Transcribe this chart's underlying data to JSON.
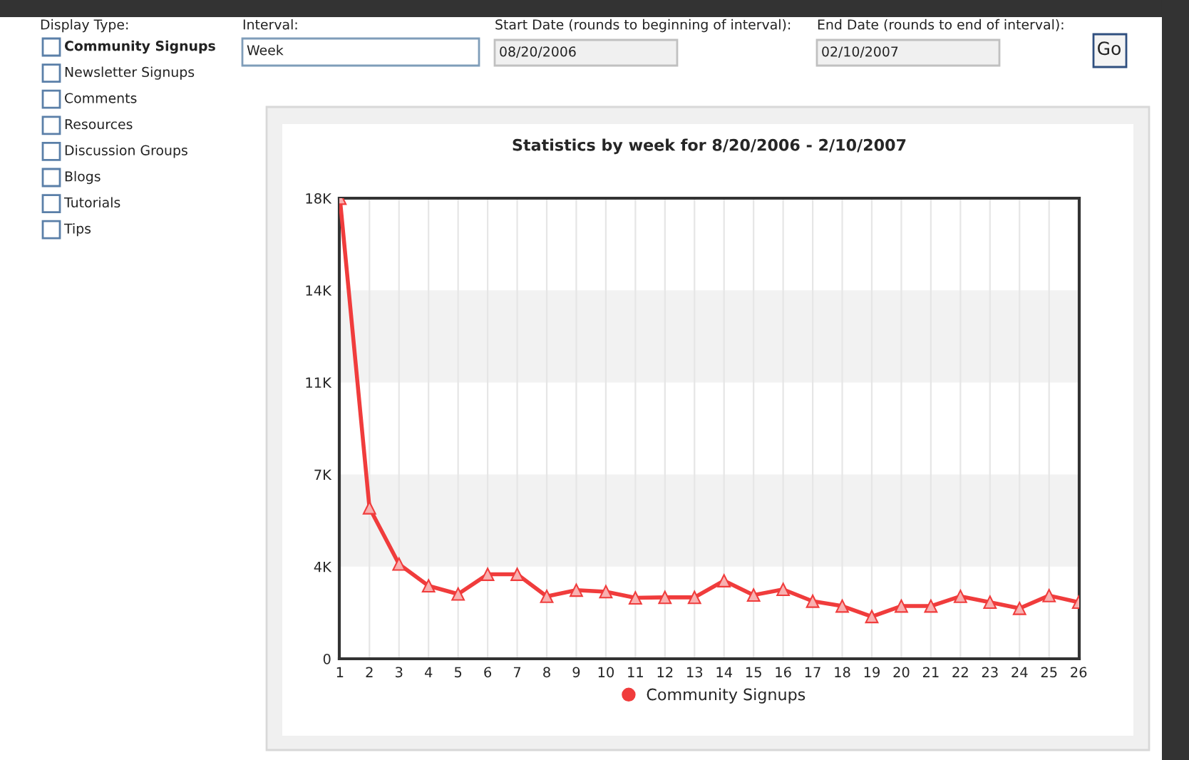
{
  "chart_data": {
    "type": "line",
    "title": "Statistics by week for 8/20/2006 - 2/10/2007",
    "categories": [
      "1",
      "2",
      "3",
      "4",
      "5",
      "6",
      "7",
      "8",
      "9",
      "10",
      "11",
      "12",
      "13",
      "14",
      "15",
      "16",
      "17",
      "18",
      "19",
      "20",
      "21",
      "22",
      "23",
      "24",
      "25",
      "26"
    ],
    "series": [
      {
        "name": "Community Signups",
        "color": "#f03c3c",
        "values": [
          18000,
          5900,
          3700,
          2850,
          2530,
          3300,
          3300,
          2440,
          2680,
          2620,
          2380,
          2400,
          2400,
          3050,
          2490,
          2710,
          2250,
          2060,
          1650,
          2060,
          2060,
          2440,
          2210,
          1970,
          2470,
          2210
        ]
      }
    ],
    "ylim": [
      0,
      18000
    ],
    "yticks": [
      0,
      {
        "value": 3600,
        "label": "4K"
      },
      {
        "value": 7200,
        "label": "7K"
      },
      {
        "value": 10800,
        "label": "11K"
      },
      {
        "value": 14400,
        "label": "14K"
      },
      {
        "value": 18000,
        "label": "18K"
      }
    ],
    "bands": [
      {
        "axis": "y",
        "from": 3600,
        "to": 7200,
        "color": "#f2f2f2"
      },
      {
        "axis": "y",
        "from": 10800,
        "to": 14400,
        "color": "#f2f2f2"
      }
    ],
    "grid": "x",
    "marker": "triangle",
    "line_style": "solid",
    "legend": "bottom",
    "annotations": [
      "Display Type:",
      "Community Signups",
      "Newsletter Signups",
      "Comments",
      "Resources",
      "Discussion Groups",
      "Blogs",
      "Tutorials",
      "Tips",
      "Interval:",
      "Week",
      "Start Date (rounds to beginning of interval):",
      "08/20/2006",
      "End Date (rounds to end of interval):",
      "02/10/2007",
      "Go"
    ]
  }
}
